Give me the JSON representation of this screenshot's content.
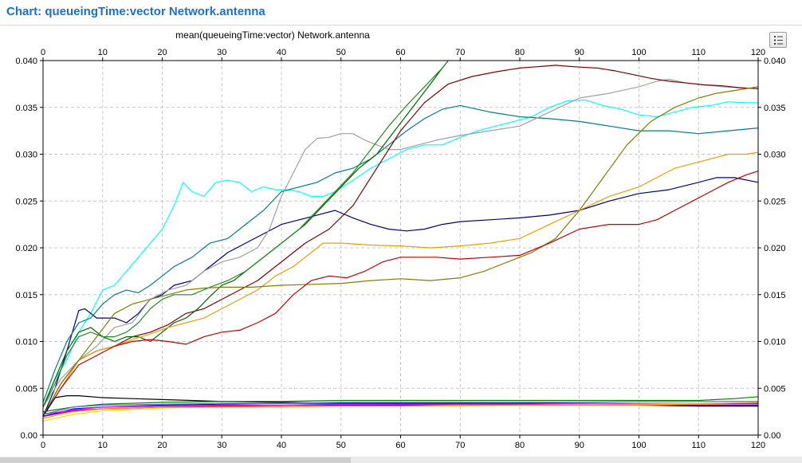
{
  "window": {
    "title": "Chart: queueingTime:vector Network.antenna"
  },
  "toolbar": {
    "legend_icon": "list-icon"
  },
  "colors": {
    "title": "#1c6fd2",
    "grid": "#c8c8c8",
    "frame": "#000000"
  },
  "chart_data": {
    "type": "line",
    "title": "mean(queueingTime:vector) Network.antenna",
    "xlabel": "",
    "ylabel": "",
    "xlim": [
      0,
      120
    ],
    "ylim": [
      0,
      0.04
    ],
    "x_ticks": [
      0,
      10,
      20,
      30,
      40,
      50,
      60,
      70,
      80,
      90,
      100,
      110,
      120
    ],
    "y_ticks": [
      0.0,
      0.005,
      0.01,
      0.015,
      0.02,
      0.025,
      0.03,
      0.035,
      0.04
    ],
    "x_tick_labels": [
      "0",
      "10",
      "20",
      "30",
      "40",
      "50",
      "60",
      "70",
      "80",
      "90",
      "100",
      "110",
      "120"
    ],
    "y_tick_labels": [
      "0.00",
      "0.005",
      "0.010",
      "0.015",
      "0.020",
      "0.025",
      "0.030",
      "0.035",
      "0.040"
    ],
    "axes": "top, bottom, left, right",
    "grid": true,
    "legend": "hidden",
    "series": [
      {
        "color": "#00ffff",
        "x": [
          0,
          2,
          4,
          6,
          8,
          10,
          12,
          14,
          16,
          18,
          20,
          22,
          23.5,
          25,
          27,
          29,
          31,
          33,
          35,
          37,
          39,
          41,
          43,
          45,
          47,
          49,
          52,
          55,
          58,
          61,
          64,
          67,
          70,
          73,
          76,
          79,
          82,
          85,
          88,
          91,
          94,
          97,
          100,
          103,
          106,
          109,
          112,
          115,
          118,
          120
        ],
        "y": [
          0.003,
          0.006,
          0.008,
          0.011,
          0.013,
          0.0155,
          0.016,
          0.0175,
          0.019,
          0.0205,
          0.022,
          0.0245,
          0.027,
          0.026,
          0.0255,
          0.027,
          0.0272,
          0.027,
          0.026,
          0.0265,
          0.0262,
          0.0262,
          0.026,
          0.0255,
          0.0255,
          0.026,
          0.0272,
          0.0285,
          0.0295,
          0.0305,
          0.031,
          0.031,
          0.0318,
          0.0325,
          0.033,
          0.0335,
          0.034,
          0.035,
          0.0357,
          0.0358,
          0.0352,
          0.0348,
          0.0342,
          0.034,
          0.0345,
          0.035,
          0.0352,
          0.0356,
          0.0355,
          0.0355
        ]
      },
      {
        "color": "#000080",
        "x": [
          0,
          2,
          4,
          6,
          7,
          9,
          12,
          14,
          16,
          18,
          20,
          22,
          25,
          28,
          31,
          34,
          37,
          40,
          43,
          46,
          49,
          52,
          55,
          58,
          61,
          64,
          67,
          70,
          75,
          80,
          85,
          90,
          95,
          100,
          105,
          110,
          113,
          116,
          120
        ],
        "y": [
          0.002,
          0.005,
          0.009,
          0.0133,
          0.0135,
          0.0125,
          0.0125,
          0.012,
          0.013,
          0.0145,
          0.015,
          0.016,
          0.0165,
          0.018,
          0.0195,
          0.0205,
          0.0215,
          0.0225,
          0.023,
          0.0235,
          0.024,
          0.0232,
          0.0225,
          0.022,
          0.0218,
          0.022,
          0.0225,
          0.0228,
          0.023,
          0.0232,
          0.0235,
          0.024,
          0.025,
          0.0258,
          0.0262,
          0.027,
          0.0275,
          0.0275,
          0.027
        ]
      },
      {
        "color": "#008080",
        "x": [
          0,
          2,
          4,
          6,
          8,
          10,
          12,
          14,
          16,
          18,
          20,
          22,
          25,
          28,
          31,
          34,
          37,
          40,
          43,
          46,
          49,
          52,
          55,
          58,
          61,
          64,
          67,
          70,
          75,
          80,
          85,
          90,
          95,
          100,
          105,
          110,
          115,
          120
        ],
        "y": [
          0.0035,
          0.007,
          0.01,
          0.012,
          0.0125,
          0.014,
          0.015,
          0.0155,
          0.0152,
          0.016,
          0.017,
          0.018,
          0.019,
          0.0205,
          0.021,
          0.0225,
          0.024,
          0.026,
          0.0265,
          0.027,
          0.028,
          0.0285,
          0.0295,
          0.031,
          0.0325,
          0.0338,
          0.0348,
          0.0352,
          0.0345,
          0.034,
          0.0338,
          0.0335,
          0.033,
          0.0325,
          0.0325,
          0.0322,
          0.0325,
          0.0328
        ]
      },
      {
        "color": "#a0a0a0",
        "x": [
          0,
          3,
          6,
          9,
          12,
          15,
          18,
          21,
          24,
          27,
          30,
          33,
          36,
          38,
          40,
          42,
          44,
          46,
          48,
          50,
          52,
          54,
          56,
          58,
          60,
          63,
          66,
          70,
          75,
          80,
          85,
          90,
          95,
          100,
          103,
          105,
          108,
          111,
          114,
          117,
          120
        ],
        "y": [
          0.003,
          0.006,
          0.008,
          0.0095,
          0.0115,
          0.012,
          0.0145,
          0.0155,
          0.016,
          0.0175,
          0.0185,
          0.019,
          0.02,
          0.022,
          0.0255,
          0.028,
          0.0305,
          0.0317,
          0.0318,
          0.0322,
          0.0322,
          0.0315,
          0.031,
          0.0305,
          0.0305,
          0.031,
          0.0315,
          0.032,
          0.0325,
          0.033,
          0.0345,
          0.036,
          0.0365,
          0.0372,
          0.0378,
          0.038,
          0.0376,
          0.0374,
          0.0372,
          0.0371,
          0.037
        ]
      },
      {
        "color": "#800000",
        "x": [
          0,
          3,
          6,
          9,
          12,
          15,
          18,
          21,
          24,
          27,
          30,
          33,
          36,
          40,
          44,
          48,
          52,
          56,
          60,
          64,
          68,
          72,
          76,
          80,
          82,
          84,
          86,
          88,
          90,
          93,
          96,
          99,
          102,
          105,
          108,
          111,
          114,
          117,
          120
        ],
        "y": [
          0.002,
          0.0055,
          0.008,
          0.009,
          0.0095,
          0.0105,
          0.011,
          0.0118,
          0.013,
          0.0135,
          0.0145,
          0.0155,
          0.0165,
          0.0185,
          0.0205,
          0.022,
          0.0245,
          0.0285,
          0.0325,
          0.0355,
          0.0375,
          0.0383,
          0.0388,
          0.0392,
          0.0393,
          0.0394,
          0.0395,
          0.0394,
          0.0393,
          0.0392,
          0.0389,
          0.0385,
          0.0381,
          0.0378,
          0.0376,
          0.0374,
          0.0373,
          0.0371,
          0.037
        ]
      },
      {
        "color": "#006400",
        "x": [
          0,
          2,
          4,
          6,
          8,
          10,
          12,
          14,
          16,
          18,
          20,
          22,
          24,
          26,
          28,
          30,
          32,
          35,
          38,
          41,
          44,
          47,
          50,
          53,
          56,
          59,
          62,
          65,
          67,
          68
        ],
        "y": [
          0.003,
          0.006,
          0.009,
          0.011,
          0.0115,
          0.0105,
          0.01,
          0.0105,
          0.0105,
          0.01,
          0.011,
          0.012,
          0.0125,
          0.0135,
          0.0148,
          0.016,
          0.0165,
          0.018,
          0.0195,
          0.021,
          0.0225,
          0.0245,
          0.0265,
          0.0285,
          0.03,
          0.0325,
          0.035,
          0.0375,
          0.0392,
          0.0402
        ]
      },
      {
        "color": "#228b22",
        "x": [
          0,
          2,
          4,
          6,
          8,
          10,
          12,
          14,
          16,
          18,
          20,
          22,
          25,
          28,
          31,
          34,
          37,
          40,
          43,
          46,
          49,
          52,
          55,
          58,
          61,
          64,
          67,
          68
        ],
        "y": [
          0.003,
          0.0055,
          0.0085,
          0.0105,
          0.011,
          0.0105,
          0.0105,
          0.011,
          0.012,
          0.0135,
          0.0145,
          0.015,
          0.015,
          0.0158,
          0.0165,
          0.0175,
          0.019,
          0.0205,
          0.022,
          0.024,
          0.026,
          0.028,
          0.0305,
          0.033,
          0.0352,
          0.0372,
          0.0392,
          0.0402
        ]
      },
      {
        "color": "#e8a000",
        "x": [
          0,
          3,
          6,
          9,
          12,
          15,
          18,
          21,
          24,
          27,
          30,
          33,
          36,
          39,
          42,
          45,
          47,
          50,
          55,
          60,
          65,
          70,
          75,
          80,
          85,
          90,
          95,
          100,
          103,
          106,
          109,
          112,
          115,
          118,
          120
        ],
        "y": [
          0.002,
          0.005,
          0.008,
          0.009,
          0.0095,
          0.0102,
          0.0108,
          0.0115,
          0.012,
          0.0125,
          0.0135,
          0.0145,
          0.0155,
          0.017,
          0.018,
          0.0195,
          0.0205,
          0.0205,
          0.0203,
          0.0202,
          0.02,
          0.0202,
          0.0205,
          0.021,
          0.0225,
          0.024,
          0.0255,
          0.0265,
          0.0275,
          0.0285,
          0.029,
          0.0295,
          0.03,
          0.03,
          0.0302
        ]
      },
      {
        "color": "#808000",
        "x": [
          0,
          3,
          6,
          9,
          12,
          15,
          18,
          21,
          24,
          27,
          30,
          35,
          40,
          45,
          50,
          55,
          60,
          65,
          70,
          74,
          78,
          82,
          86,
          90,
          94,
          98,
          102,
          106,
          110,
          113,
          116,
          120
        ],
        "y": [
          0.002,
          0.0055,
          0.008,
          0.0105,
          0.013,
          0.014,
          0.0145,
          0.015,
          0.0155,
          0.0157,
          0.0158,
          0.0158,
          0.016,
          0.0161,
          0.0162,
          0.0165,
          0.0167,
          0.0165,
          0.0168,
          0.0175,
          0.0185,
          0.0195,
          0.021,
          0.024,
          0.0275,
          0.031,
          0.0335,
          0.035,
          0.036,
          0.0365,
          0.0368,
          0.0372
        ]
      },
      {
        "color": "#c00000",
        "x": [
          0,
          3,
          6,
          9,
          12,
          15,
          18,
          21,
          24,
          27,
          30,
          33,
          36,
          39,
          42,
          45,
          48,
          51,
          54,
          57,
          60,
          63,
          66,
          70,
          75,
          80,
          85,
          90,
          95,
          100,
          103,
          106,
          109,
          112,
          115,
          118,
          120
        ],
        "y": [
          0.002,
          0.005,
          0.0075,
          0.0085,
          0.0095,
          0.01,
          0.0102,
          0.01,
          0.0097,
          0.0105,
          0.011,
          0.0112,
          0.012,
          0.013,
          0.015,
          0.0165,
          0.017,
          0.0168,
          0.0175,
          0.0185,
          0.019,
          0.019,
          0.019,
          0.0188,
          0.019,
          0.0192,
          0.0205,
          0.022,
          0.0225,
          0.0225,
          0.023,
          0.024,
          0.025,
          0.026,
          0.027,
          0.0278,
          0.0282
        ]
      },
      {
        "color": "#000000",
        "x": [
          0,
          2,
          4,
          6,
          10,
          15,
          20,
          30,
          40,
          50,
          60,
          70,
          80,
          90,
          100,
          110,
          120
        ],
        "y": [
          0.002,
          0.004,
          0.0042,
          0.0042,
          0.004,
          0.0039,
          0.0038,
          0.0036,
          0.0035,
          0.0034,
          0.0033,
          0.0033,
          0.0032,
          0.0032,
          0.0032,
          0.0031,
          0.0031
        ]
      },
      {
        "color": "#008000",
        "x": [
          0,
          5,
          10,
          20,
          30,
          40,
          50,
          60,
          70,
          80,
          90,
          100,
          110,
          116,
          120
        ],
        "y": [
          0.0025,
          0.003,
          0.0033,
          0.0035,
          0.0036,
          0.0036,
          0.0037,
          0.0037,
          0.0037,
          0.0037,
          0.0037,
          0.0037,
          0.0037,
          0.0039,
          0.0041
        ]
      },
      {
        "color": "#0000ff",
        "x": [
          0,
          5,
          10,
          20,
          30,
          40,
          50,
          60,
          70,
          80,
          90,
          100,
          110,
          120
        ],
        "y": [
          0.002,
          0.0028,
          0.003,
          0.0032,
          0.0033,
          0.0034,
          0.0034,
          0.0034,
          0.0034,
          0.0034,
          0.0034,
          0.0034,
          0.0034,
          0.0034
        ]
      },
      {
        "color": "#ff00ff",
        "x": [
          0,
          5,
          10,
          20,
          30,
          40,
          50,
          60,
          70,
          80,
          90,
          100,
          110,
          120
        ],
        "y": [
          0.0022,
          0.0027,
          0.003,
          0.0031,
          0.0032,
          0.0032,
          0.0033,
          0.0033,
          0.0033,
          0.0033,
          0.0034,
          0.0034,
          0.0034,
          0.0035
        ]
      },
      {
        "color": "#ffd700",
        "x": [
          0,
          5,
          10,
          20,
          30,
          40,
          50,
          60,
          70,
          80,
          90,
          100,
          110,
          120
        ],
        "y": [
          0.0015,
          0.0022,
          0.0026,
          0.0029,
          0.003,
          0.003,
          0.0031,
          0.0031,
          0.0031,
          0.0032,
          0.0032,
          0.0033,
          0.0034,
          0.0035
        ]
      },
      {
        "color": "#800080",
        "x": [
          0,
          5,
          10,
          20,
          30,
          40,
          50,
          60,
          70,
          80,
          90,
          100,
          110,
          120
        ],
        "y": [
          0.002,
          0.0026,
          0.0028,
          0.003,
          0.0031,
          0.0031,
          0.0032,
          0.0032,
          0.0032,
          0.0032,
          0.0032,
          0.0032,
          0.0032,
          0.0032
        ]
      },
      {
        "color": "#ff8c00",
        "x": [
          0,
          5,
          10,
          20,
          30,
          40,
          50,
          60,
          70,
          80,
          90,
          100,
          110,
          120
        ],
        "y": [
          0.0018,
          0.0025,
          0.0028,
          0.003,
          0.003,
          0.0031,
          0.0031,
          0.0031,
          0.0032,
          0.0032,
          0.0032,
          0.0032,
          0.0033,
          0.0033
        ]
      },
      {
        "color": "#4682b4",
        "x": [
          0,
          5,
          10,
          20,
          30,
          40,
          50,
          60,
          70,
          80,
          90,
          100,
          110,
          120
        ],
        "y": [
          0.0022,
          0.003,
          0.0032,
          0.0033,
          0.0034,
          0.0034,
          0.0035,
          0.0035,
          0.0035,
          0.0035,
          0.0035,
          0.0036,
          0.0036,
          0.0036
        ]
      }
    ]
  }
}
